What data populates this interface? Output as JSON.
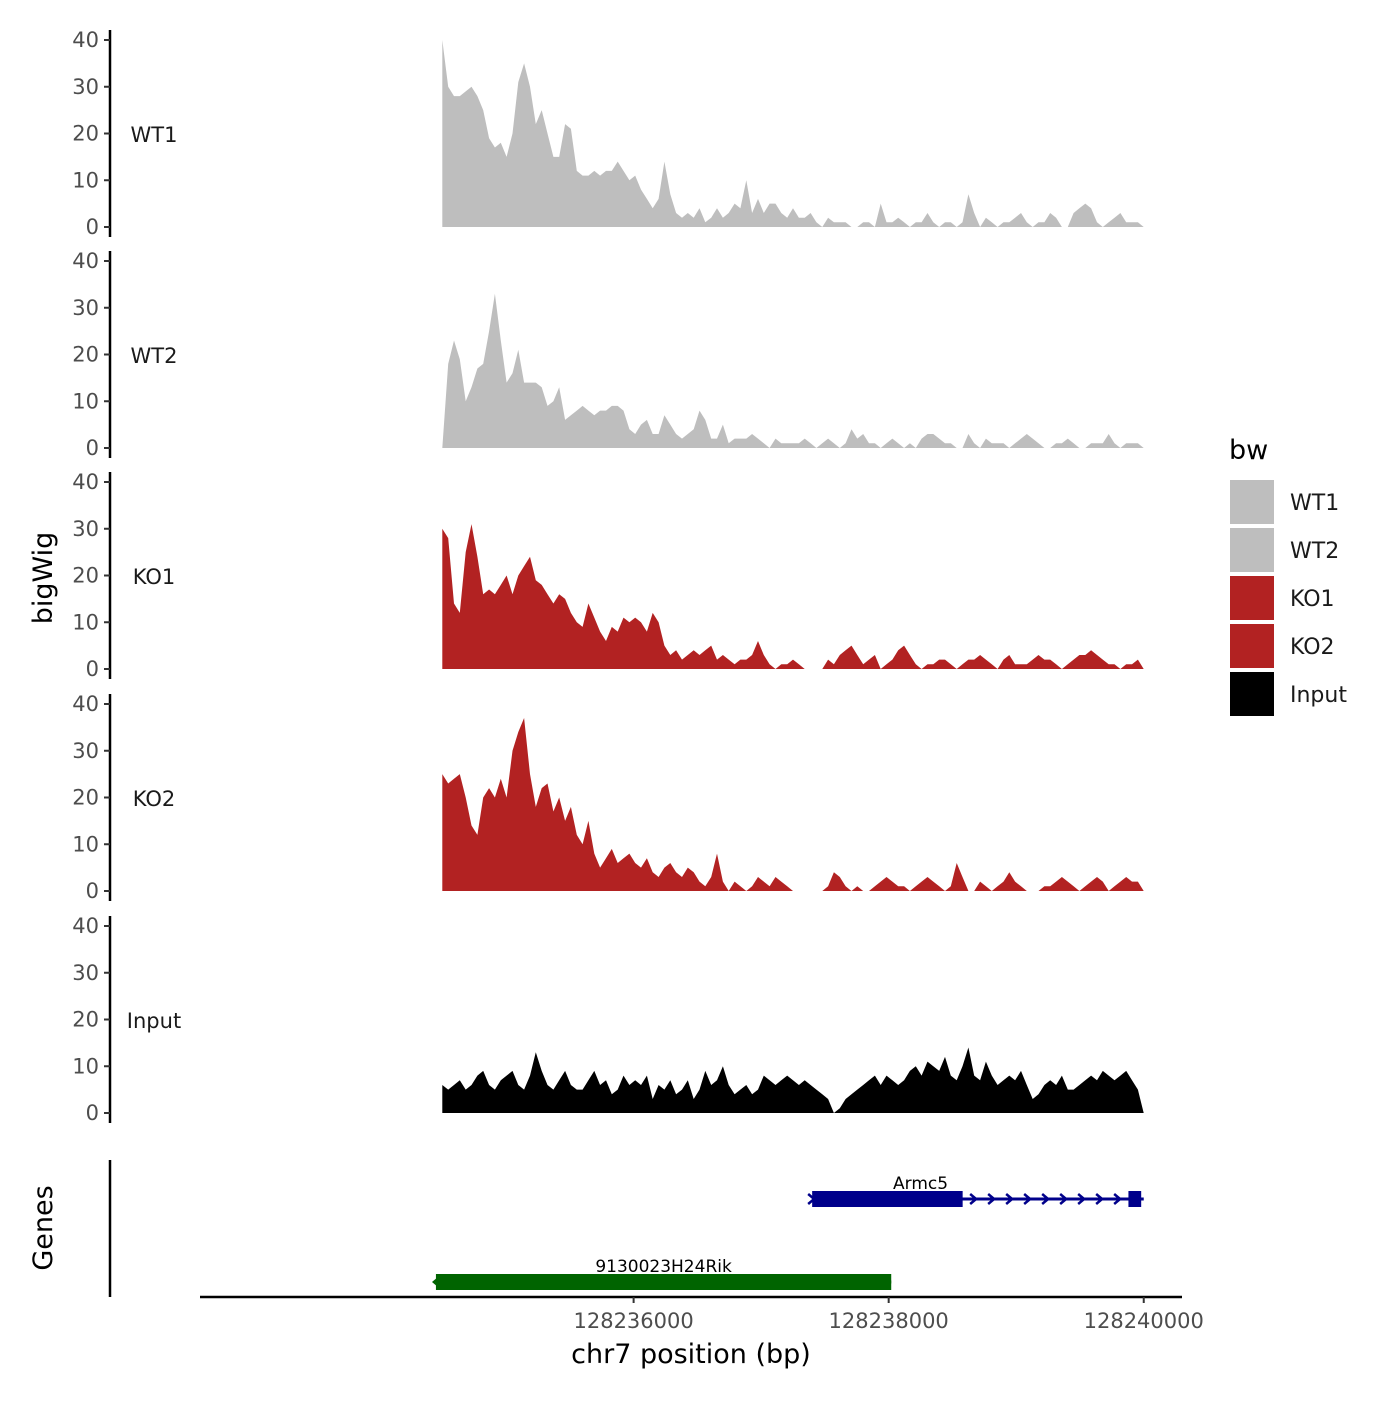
{
  "chart_data": {
    "type": "area",
    "chromosome": "chr7",
    "xlabel": "chr7 position (bp)",
    "ylabel": "bigWig",
    "genes_label": "Genes",
    "xlim": [
      128232600,
      128240300
    ],
    "x_ticks": [
      128236000,
      128238000,
      128240000
    ],
    "x_tick_labels": [
      "128236000",
      "128238000",
      "128240000"
    ],
    "ylim": [
      0,
      40
    ],
    "y_ticks": [
      0,
      10,
      20,
      30,
      40
    ],
    "y_tick_labels": [
      "0",
      "10",
      "20",
      "30",
      "40"
    ],
    "legend": {
      "title": "bw",
      "entries": [
        {
          "label": "WT1",
          "color": "#bebebe"
        },
        {
          "label": "WT2",
          "color": "#bebebe"
        },
        {
          "label": "KO1",
          "color": "#b22222"
        },
        {
          "label": "KO2",
          "color": "#b22222"
        },
        {
          "label": "Input",
          "color": "#000000"
        }
      ]
    },
    "tracks": [
      {
        "name": "WT1",
        "color": "#bebebe",
        "x_start": 128234500,
        "x_end": 128240000,
        "values": [
          40,
          30,
          28,
          28,
          29,
          30,
          28,
          25,
          19,
          17,
          18,
          15,
          20,
          31,
          35,
          30,
          22,
          25,
          20,
          15,
          15,
          22,
          21,
          12,
          11,
          11,
          12,
          11,
          12,
          12,
          14,
          12,
          10,
          11,
          8,
          6,
          4,
          6,
          14,
          7,
          3,
          2,
          3,
          2,
          4,
          1,
          2,
          4,
          2,
          3,
          5,
          4,
          10,
          3,
          6,
          3,
          5,
          5,
          3,
          2,
          4,
          2,
          2,
          3,
          1,
          0,
          2,
          1,
          1,
          1,
          0,
          0,
          1,
          1,
          0,
          5,
          1,
          1,
          2,
          1,
          0,
          1,
          1,
          3,
          1,
          0,
          1,
          1,
          0,
          1,
          7,
          3,
          0,
          2,
          1,
          0,
          1,
          1,
          2,
          3,
          1,
          0,
          1,
          1,
          3,
          2,
          0,
          0,
          3,
          4,
          5,
          4,
          1,
          0,
          1,
          2,
          3,
          1,
          1,
          1,
          0
        ]
      },
      {
        "name": "WT2",
        "color": "#bebebe",
        "x_start": 128234500,
        "x_end": 128240000,
        "values": [
          0,
          18,
          23,
          19,
          10,
          13,
          17,
          18,
          25,
          33,
          23,
          14,
          16,
          21,
          14,
          14,
          14,
          13,
          9,
          10,
          13,
          6,
          7,
          8,
          9,
          8,
          7,
          8,
          8,
          9,
          9,
          8,
          4,
          3,
          5,
          6,
          3,
          3,
          7,
          5,
          3,
          2,
          3,
          4,
          8,
          6,
          2,
          2,
          5,
          1,
          2,
          2,
          2,
          3,
          2,
          1,
          0,
          2,
          1,
          1,
          1,
          1,
          2,
          1,
          0,
          1,
          2,
          1,
          0,
          1,
          4,
          2,
          3,
          1,
          1,
          0,
          1,
          2,
          1,
          0,
          1,
          0,
          2,
          3,
          3,
          2,
          1,
          1,
          0,
          0,
          3,
          1,
          0,
          2,
          1,
          1,
          1,
          0,
          1,
          2,
          3,
          2,
          1,
          0,
          0,
          1,
          1,
          2,
          1,
          0,
          0,
          1,
          1,
          1,
          3,
          1,
          0,
          1,
          1,
          1,
          0
        ]
      },
      {
        "name": "KO1",
        "color": "#b22222",
        "x_start": 128234500,
        "x_end": 128240000,
        "values": [
          30,
          28,
          14,
          12,
          25,
          31,
          24,
          16,
          17,
          16,
          18,
          20,
          16,
          20,
          22,
          24,
          19,
          18,
          16,
          14,
          16,
          15,
          12,
          10,
          9,
          14,
          11,
          8,
          6,
          9,
          8,
          11,
          10,
          11,
          10,
          8,
          12,
          10,
          5,
          3,
          4,
          2,
          3,
          4,
          3,
          4,
          5,
          2,
          3,
          2,
          1,
          2,
          2,
          3,
          6,
          3,
          1,
          0,
          1,
          1,
          2,
          1,
          0,
          0,
          0,
          0,
          2,
          1,
          3,
          4,
          5,
          3,
          1,
          2,
          3,
          0,
          1,
          2,
          4,
          5,
          3,
          1,
          0,
          1,
          1,
          2,
          2,
          1,
          0,
          1,
          2,
          2,
          3,
          2,
          1,
          0,
          2,
          3,
          1,
          1,
          1,
          2,
          3,
          2,
          2,
          1,
          0,
          1,
          2,
          3,
          3,
          4,
          3,
          2,
          1,
          1,
          0,
          1,
          1,
          2,
          0
        ]
      },
      {
        "name": "KO2",
        "color": "#b22222",
        "x_start": 128234500,
        "x_end": 128240000,
        "values": [
          25,
          23,
          24,
          25,
          20,
          14,
          12,
          20,
          22,
          20,
          24,
          20,
          30,
          34,
          37,
          25,
          18,
          22,
          23,
          17,
          20,
          15,
          18,
          12,
          10,
          15,
          8,
          5,
          7,
          9,
          6,
          7,
          8,
          6,
          5,
          7,
          4,
          3,
          5,
          6,
          4,
          3,
          5,
          4,
          2,
          1,
          3,
          8,
          2,
          0,
          2,
          1,
          0,
          1,
          3,
          2,
          1,
          3,
          2,
          1,
          0,
          0,
          0,
          0,
          0,
          0,
          1,
          4,
          3,
          1,
          0,
          1,
          0,
          0,
          1,
          2,
          3,
          2,
          1,
          1,
          0,
          1,
          2,
          3,
          2,
          1,
          0,
          1,
          6,
          3,
          0,
          0,
          2,
          1,
          0,
          1,
          2,
          4,
          2,
          1,
          0,
          0,
          0,
          1,
          1,
          2,
          3,
          2,
          1,
          0,
          1,
          2,
          3,
          2,
          0,
          1,
          2,
          3,
          2,
          2,
          0
        ]
      },
      {
        "name": "Input",
        "color": "#000000",
        "x_start": 128234500,
        "x_end": 128240000,
        "values": [
          6,
          5,
          6,
          7,
          5,
          6,
          8,
          9,
          6,
          5,
          7,
          8,
          9,
          6,
          5,
          8,
          13,
          9,
          6,
          5,
          7,
          9,
          6,
          5,
          5,
          7,
          9,
          6,
          7,
          4,
          5,
          8,
          6,
          7,
          6,
          8,
          3,
          6,
          5,
          7,
          4,
          5,
          7,
          3,
          5,
          9,
          6,
          7,
          10,
          6,
          4,
          5,
          6,
          4,
          5,
          8,
          7,
          6,
          7,
          8,
          7,
          6,
          7,
          6,
          5,
          4,
          3,
          0,
          1,
          3,
          4,
          5,
          6,
          7,
          8,
          6,
          8,
          7,
          6,
          7,
          9,
          10,
          8,
          11,
          10,
          9,
          12,
          8,
          7,
          10,
          14,
          8,
          7,
          11,
          8,
          6,
          7,
          8,
          7,
          9,
          6,
          3,
          4,
          6,
          7,
          6,
          8,
          5,
          5,
          6,
          7,
          8,
          7,
          9,
          8,
          7,
          8,
          9,
          7,
          5,
          0
        ]
      }
    ],
    "genes": [
      {
        "name": "Armc5",
        "color": "#00008b",
        "strand": "+",
        "start": 128237400,
        "end": 128240000,
        "thick_blocks": [
          [
            128237400,
            128238580
          ],
          [
            128239880,
            128239980
          ]
        ]
      },
      {
        "name": "9130023H24Rik",
        "color": "#006400",
        "strand": "-",
        "start": 128234450,
        "end": 128238020,
        "thick_blocks": [
          [
            128234450,
            128238020
          ]
        ]
      }
    ]
  }
}
